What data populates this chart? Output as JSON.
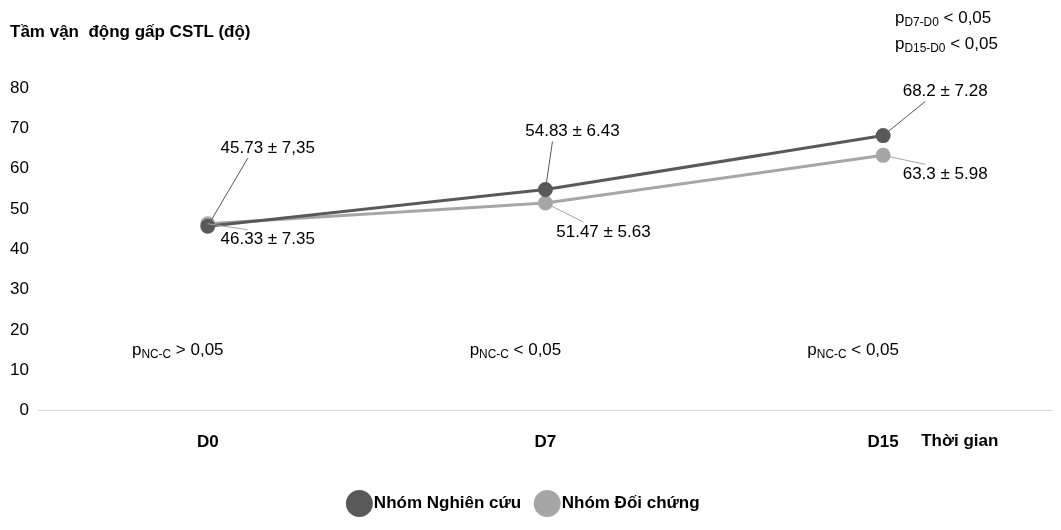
{
  "chart_data": {
    "type": "line",
    "ylabel": "Tầm vận  động gấp CSTL (độ)",
    "xlabel": "Thời gian",
    "categories": [
      "D0",
      "D7",
      "D15"
    ],
    "series": [
      {
        "name": "Nhóm Nghiên cứu",
        "color": "#595959",
        "values": [
          45.73,
          54.83,
          68.2
        ],
        "value_labels": [
          "45.73 ± 7,35",
          "54.83 ± 6.43",
          "68.2 ± 7.28"
        ]
      },
      {
        "name": "Nhóm Đối chứng",
        "color": "#a6a6a6",
        "values": [
          46.33,
          51.47,
          63.3
        ],
        "value_labels": [
          "46.33 ± 7.35",
          "51.47 ± 5.63",
          "63.3 ± 5.98"
        ]
      }
    ],
    "ylim": [
      0,
      80
    ],
    "yticks": [
      0,
      10,
      20,
      30,
      40,
      50,
      60,
      70,
      80
    ],
    "grid": false,
    "legend": "bottom",
    "marker": "circle",
    "line_style": "solid",
    "annotations": [
      "p$_{NC-C}$ > 0,05",
      "p$_{NC-C}$ < 0,05",
      "p$_{NC-C}$ < 0,05",
      "p$_{D7-D0}$ < 0,05",
      "p$_{D15-D0}$ < 0,05"
    ]
  }
}
